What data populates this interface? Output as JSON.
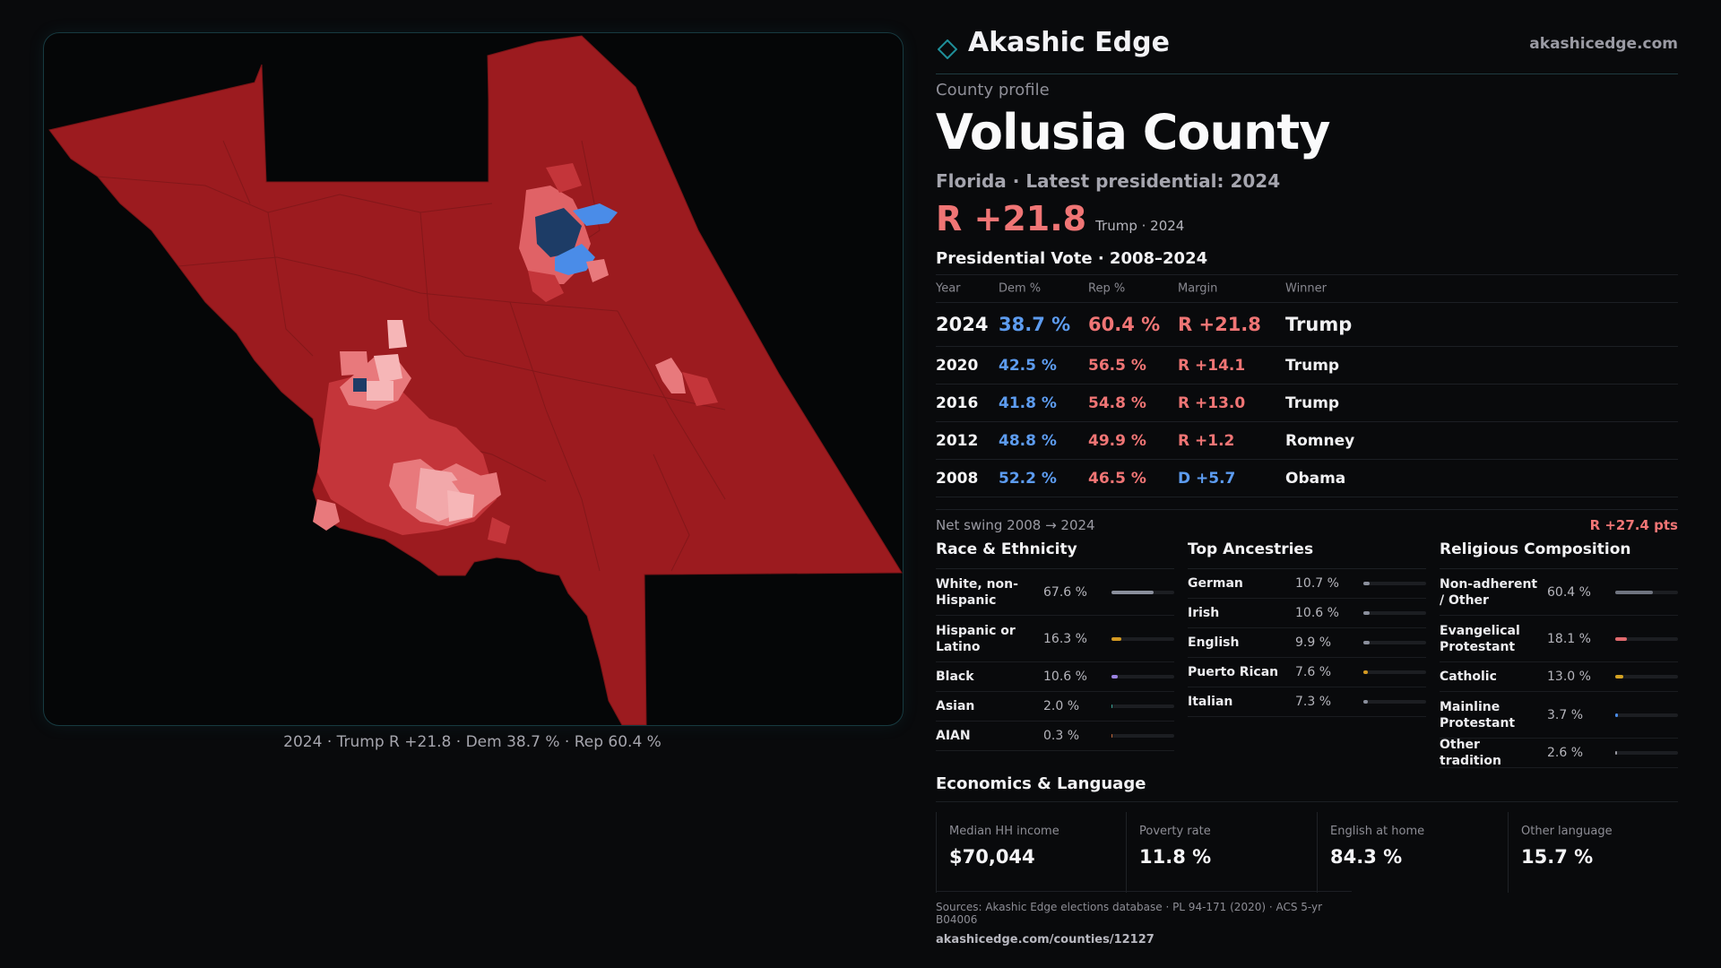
{
  "map": {
    "caption": "2024 · Trump R +21.8 · Dem 38.7 % · Rep 60.4 %",
    "colors": {
      "base": "#9c1b1f",
      "lean_r": "#cf3b3f",
      "light_r": "#ee8d8f",
      "pale_r": "#f6b6b7",
      "lean_d": "#4a8ce8",
      "strong_d": "#1d3c66"
    }
  },
  "brand": {
    "name": "Akashic Edge",
    "url": "akashicedge.com",
    "icon": "diamond-logo-icon",
    "accent": "#1f6f78"
  },
  "profile": {
    "kicker": "County profile",
    "county": "Volusia County",
    "subtitle": "Florida · Latest presidential: 2024",
    "headline_margin": "R +21.8",
    "headline_winner": "Trump · 2024"
  },
  "presidential": {
    "title": "Presidential Vote · 2008–2024",
    "columns": [
      "Year",
      "Dem %",
      "Rep %",
      "Margin",
      "Winner"
    ],
    "rows": [
      {
        "year": "2024",
        "dem": "38.7 %",
        "rep": "60.4 %",
        "margin": "R +21.8",
        "winner": "Trump"
      },
      {
        "year": "2020",
        "dem": "42.5 %",
        "rep": "56.5 %",
        "margin": "R +14.1",
        "winner": "Trump"
      },
      {
        "year": "2016",
        "dem": "41.8 %",
        "rep": "54.8 %",
        "margin": "R +13.0",
        "winner": "Trump"
      },
      {
        "year": "2012",
        "dem": "48.8 %",
        "rep": "49.9 %",
        "margin": "R +1.2",
        "winner": "Romney"
      },
      {
        "year": "2008",
        "dem": "52.2 %",
        "rep": "46.5 %",
        "margin": "D +5.7",
        "winner": "Obama"
      }
    ],
    "swing_label": "Net swing 2008 → 2024",
    "swing_value": "R +27.4 pts"
  },
  "race": {
    "title": "Race & Ethnicity",
    "items": [
      {
        "label": "White, non-Hispanic",
        "value": "67.6 %",
        "pct": 67.6,
        "color": "#8a8f9c"
      },
      {
        "label": "Hispanic or Latino",
        "value": "16.3 %",
        "pct": 16.3,
        "color": "#d49a22"
      },
      {
        "label": "Black",
        "value": "10.6 %",
        "pct": 10.6,
        "color": "#9a82e0"
      },
      {
        "label": "Asian",
        "value": "2.0 %",
        "pct": 2.0,
        "color": "#3aa89a"
      },
      {
        "label": "AIAN",
        "value": "0.3 %",
        "pct": 0.3,
        "color": "#c46a3a"
      }
    ]
  },
  "ancestry": {
    "title": "Top Ancestries",
    "items": [
      {
        "label": "German",
        "value": "10.7 %",
        "pct": 10.7,
        "color": "#8a8f9c"
      },
      {
        "label": "Irish",
        "value": "10.6 %",
        "pct": 10.6,
        "color": "#8a8f9c"
      },
      {
        "label": "English",
        "value": "9.9 %",
        "pct": 9.9,
        "color": "#8a8f9c"
      },
      {
        "label": "Puerto Rican",
        "value": "7.6 %",
        "pct": 7.6,
        "color": "#d49a22"
      },
      {
        "label": "Italian",
        "value": "7.3 %",
        "pct": 7.3,
        "color": "#8a8f9c"
      }
    ]
  },
  "religion": {
    "title": "Religious Composition",
    "items": [
      {
        "label": "Non-adherent / Other",
        "value": "60.4 %",
        "pct": 60.4,
        "color": "#6f7480"
      },
      {
        "label": "Evangelical Protestant",
        "value": "18.1 %",
        "pct": 18.1,
        "color": "#e06a6e"
      },
      {
        "label": "Catholic",
        "value": "13.0 %",
        "pct": 13.0,
        "color": "#d4a322"
      },
      {
        "label": "Mainline Protestant",
        "value": "3.7 %",
        "pct": 3.7,
        "color": "#4a8ce8"
      },
      {
        "label": "Other tradition",
        "value": "2.6 %",
        "pct": 2.6,
        "color": "#9a9aa3"
      }
    ]
  },
  "economics": {
    "title": "Economics & Language",
    "cells": [
      {
        "label": "Median HH income",
        "value": "$70,044"
      },
      {
        "label": "Poverty rate",
        "value": "11.8 %"
      },
      {
        "label": "English at home",
        "value": "84.3 %"
      },
      {
        "label": "Other language",
        "value": "15.7 %"
      }
    ]
  },
  "sources": {
    "line1": "Sources: Akashic Edge elections database · PL 94-171 (2020) · ACS 5-yr B04006",
    "line2": "akashicedge.com/counties/12127"
  }
}
